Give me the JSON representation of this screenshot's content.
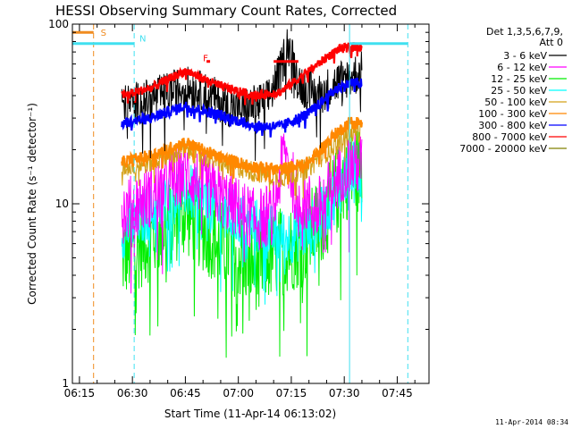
{
  "chart_data": {
    "type": "line",
    "title": "HESSI Observing Summary Count Rates, Corrected",
    "xlabel": "Start Time (11-Apr-14 06:13:02)",
    "ylabel": "Corrected Count Rate (s⁻¹ detector⁻¹)",
    "yscale": "log",
    "xlim": [
      "06:13",
      "07:54"
    ],
    "ylim": [
      1,
      100
    ],
    "x_ticks": [
      "06:15",
      "06:30",
      "06:45",
      "07:00",
      "07:15",
      "07:30",
      "07:45"
    ],
    "y_ticks": [
      {
        "value": 1,
        "label": "1"
      },
      {
        "value": 10,
        "label": "10"
      },
      {
        "value": 100,
        "label": "100"
      }
    ],
    "legend_header": [
      "Det 1,3,5,6,7,9,",
      "Att 0"
    ],
    "legend_position": "right",
    "footer_timestamp": "11-Apr-2014 08:34",
    "vertical_lines": [
      {
        "x": "06:19",
        "color": "#f08c20",
        "style": "dashed"
      },
      {
        "x": "06:30:30",
        "color": "#40e0f0",
        "style": "dashed"
      },
      {
        "x": "07:31:30",
        "color": "#40e0f0",
        "style": "solid"
      },
      {
        "x": "07:48",
        "color": "#40e0f0",
        "style": "dashed"
      }
    ],
    "annotations": [
      {
        "text": "S",
        "x": "06:21",
        "y": 86,
        "color": "#f08c20"
      },
      {
        "text": "N",
        "x": "06:32",
        "y": 80,
        "color": "#40e0f0"
      },
      {
        "text": "F",
        "x": "06:50",
        "y": 62,
        "color": "#ff0000"
      }
    ],
    "markers": [
      {
        "name": "saa-bar",
        "x": [
          "06:13",
          "06:19"
        ],
        "y": 90,
        "color": "#f08c20"
      },
      {
        "name": "night-bar",
        "x": [
          "06:13",
          "06:30:30"
        ],
        "y": 78,
        "color": "#40e0f0"
      },
      {
        "name": "night-bar-2",
        "x": [
          "07:31:30",
          "07:48"
        ],
        "y": 78,
        "color": "#40e0f0"
      },
      {
        "name": "flare-dot",
        "x": [
          "06:51",
          "06:52"
        ],
        "y": 62,
        "color": "#ff0000"
      },
      {
        "name": "flare-bar",
        "x": [
          "07:10",
          "07:17"
        ],
        "y": 62,
        "color": "#ff0000"
      }
    ],
    "data_window": [
      "06:27",
      "07:35"
    ],
    "series": [
      {
        "name": "3 - 6 keV",
        "color": "#000000",
        "noise": 0.12,
        "points": [
          [
            "06:27",
            35
          ],
          [
            "06:35",
            38
          ],
          [
            "06:45",
            45
          ],
          [
            "06:52",
            40
          ],
          [
            "07:00",
            33
          ],
          [
            "07:08",
            37
          ],
          [
            "07:12",
            55
          ],
          [
            "07:14",
            80
          ],
          [
            "07:17",
            48
          ],
          [
            "07:22",
            40
          ],
          [
            "07:30",
            50
          ],
          [
            "07:35",
            54
          ]
        ]
      },
      {
        "name": "6 - 12 keV",
        "color": "#ff00ff",
        "noise": 0.18,
        "points": [
          [
            "06:27",
            9
          ],
          [
            "06:35",
            11
          ],
          [
            "06:45",
            15
          ],
          [
            "06:55",
            11
          ],
          [
            "07:05",
            8
          ],
          [
            "07:10",
            9
          ],
          [
            "07:13",
            20
          ],
          [
            "07:16",
            12
          ],
          [
            "07:22",
            9
          ],
          [
            "07:30",
            16
          ],
          [
            "07:35",
            17
          ]
        ]
      },
      {
        "name": "12 - 25 keV",
        "color": "#00ee00",
        "noise": 0.25,
        "points": [
          [
            "06:27",
            5
          ],
          [
            "06:35",
            6.5
          ],
          [
            "06:45",
            9
          ],
          [
            "06:55",
            6
          ],
          [
            "07:05",
            4.5
          ],
          [
            "07:12",
            5.5
          ],
          [
            "07:18",
            6
          ],
          [
            "07:25",
            9
          ],
          [
            "07:30",
            14
          ],
          [
            "07:35",
            16
          ]
        ]
      },
      {
        "name": "25 - 50 keV",
        "color": "#00ffff",
        "noise": 0.16,
        "points": [
          [
            "06:27",
            7
          ],
          [
            "06:35",
            9
          ],
          [
            "06:45",
            12
          ],
          [
            "06:55",
            9
          ],
          [
            "07:05",
            7.5
          ],
          [
            "07:12",
            6.5
          ],
          [
            "07:20",
            7
          ],
          [
            "07:26",
            10
          ],
          [
            "07:32",
            16
          ],
          [
            "07:35",
            15
          ]
        ]
      },
      {
        "name": "50 - 100 keV",
        "color": "#d4a017",
        "noise": 0.06,
        "points": [
          [
            "06:27",
            16
          ],
          [
            "06:35",
            17
          ],
          [
            "06:45",
            20
          ],
          [
            "06:55",
            17
          ],
          [
            "07:05",
            15
          ],
          [
            "07:12",
            14
          ],
          [
            "07:20",
            16
          ],
          [
            "07:27",
            21
          ],
          [
            "07:32",
            25
          ],
          [
            "07:35",
            25
          ]
        ]
      },
      {
        "name": "100 - 300 keV",
        "color": "#ff8800",
        "noise": 0.035,
        "points": [
          [
            "06:27",
            17
          ],
          [
            "06:35",
            18.5
          ],
          [
            "06:45",
            22
          ],
          [
            "06:55",
            18
          ],
          [
            "07:05",
            16
          ],
          [
            "07:12",
            15.5
          ],
          [
            "07:20",
            17
          ],
          [
            "07:27",
            24
          ],
          [
            "07:32",
            29
          ],
          [
            "07:35",
            28
          ]
        ]
      },
      {
        "name": "300 - 800 keV",
        "color": "#0000ff",
        "noise": 0.03,
        "points": [
          [
            "06:27",
            28
          ],
          [
            "06:35",
            30
          ],
          [
            "06:45",
            35
          ],
          [
            "06:55",
            31
          ],
          [
            "07:05",
            27
          ],
          [
            "07:12",
            27
          ],
          [
            "07:20",
            32
          ],
          [
            "07:28",
            44
          ],
          [
            "07:32",
            47
          ],
          [
            "07:35",
            47
          ]
        ]
      },
      {
        "name": "800 - 7000 keV",
        "color": "#ff0000",
        "noise": 0.025,
        "points": [
          [
            "06:27",
            40
          ],
          [
            "06:35",
            44
          ],
          [
            "06:45",
            55
          ],
          [
            "06:55",
            45
          ],
          [
            "07:05",
            40
          ],
          [
            "07:12",
            42
          ],
          [
            "07:20",
            55
          ],
          [
            "07:28",
            72
          ],
          [
            "07:32",
            75
          ],
          [
            "07:35",
            75
          ]
        ]
      },
      {
        "name": "7000 - 20000 keV",
        "color": "#808000",
        "noise": 0.0,
        "points": []
      }
    ]
  }
}
